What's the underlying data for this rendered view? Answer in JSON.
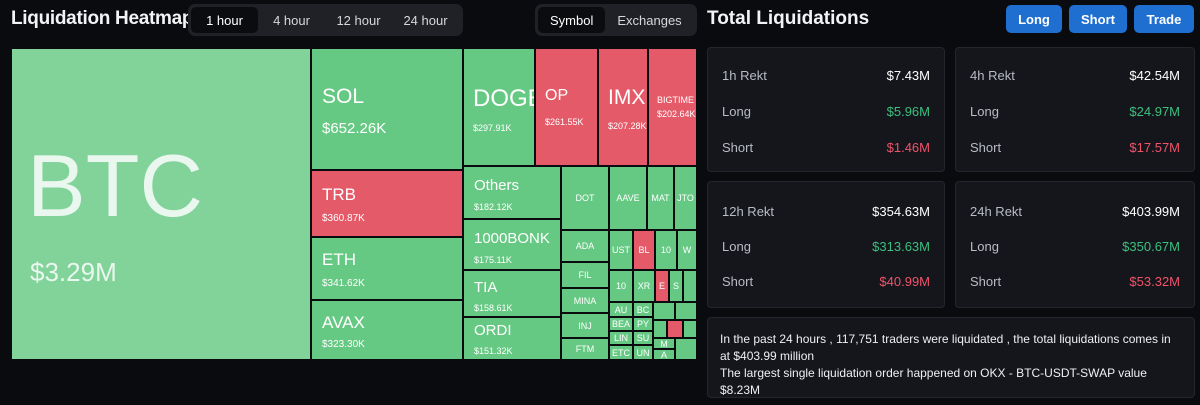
{
  "header": {
    "title": "Liquidation Heatmap",
    "time_tabs": [
      "1 hour",
      "4 hour",
      "12 hour",
      "24 hour"
    ],
    "active_time_tab": "1 hour",
    "view_tabs": [
      "Symbol",
      "Exchanges"
    ],
    "active_view_tab": "Symbol"
  },
  "heatmap_tiles": [
    {
      "symbol": "BTC",
      "value": "$3.29M",
      "color": "light-green"
    },
    {
      "symbol": "SOL",
      "value": "$652.26K",
      "color": "green"
    },
    {
      "symbol": "TRB",
      "value": "$360.87K",
      "color": "red"
    },
    {
      "symbol": "ETH",
      "value": "$341.62K",
      "color": "green"
    },
    {
      "symbol": "AVAX",
      "value": "$323.30K",
      "color": "green"
    },
    {
      "symbol": "DOGE",
      "value": "$297.91K",
      "color": "green"
    },
    {
      "symbol": "OP",
      "value": "$261.55K",
      "color": "red"
    },
    {
      "symbol": "IMX",
      "value": "$207.28K",
      "color": "red"
    },
    {
      "symbol": "BIGTIME",
      "value": "$202.64K",
      "color": "red"
    },
    {
      "symbol": "Others",
      "value": "$182.12K",
      "color": "green"
    },
    {
      "symbol": "1000BONK",
      "value": "$175.11K",
      "color": "green"
    },
    {
      "symbol": "TIA",
      "value": "$158.61K",
      "color": "green"
    },
    {
      "symbol": "ORDI",
      "value": "$151.32K",
      "color": "green"
    },
    {
      "symbol": "DOT",
      "value": "",
      "color": "green"
    },
    {
      "symbol": "AAVE",
      "value": "",
      "color": "green"
    },
    {
      "symbol": "MAT",
      "value": "",
      "color": "green"
    },
    {
      "symbol": "JTO",
      "value": "",
      "color": "green"
    },
    {
      "symbol": "ADA",
      "value": "",
      "color": "green"
    },
    {
      "symbol": "UST",
      "value": "",
      "color": "green"
    },
    {
      "symbol": "BL",
      "value": "",
      "color": "red"
    },
    {
      "symbol": "10",
      "value": "",
      "color": "green"
    },
    {
      "symbol": "W",
      "value": "",
      "color": "green"
    },
    {
      "symbol": "FIL",
      "value": "",
      "color": "green"
    },
    {
      "symbol": "10",
      "value": "",
      "color": "green"
    },
    {
      "symbol": "XR",
      "value": "",
      "color": "green"
    },
    {
      "symbol": "E",
      "value": "",
      "color": "red"
    },
    {
      "symbol": "S",
      "value": "",
      "color": "green"
    },
    {
      "symbol": "MINA",
      "value": "",
      "color": "green"
    },
    {
      "symbol": "INJ",
      "value": "",
      "color": "green"
    },
    {
      "symbol": "FTM",
      "value": "",
      "color": "green"
    },
    {
      "symbol": "AU",
      "value": "",
      "color": "green"
    },
    {
      "symbol": "BC",
      "value": "",
      "color": "green"
    },
    {
      "symbol": "BEA",
      "value": "",
      "color": "green"
    },
    {
      "symbol": "PY",
      "value": "",
      "color": "green"
    },
    {
      "symbol": "LIN",
      "value": "",
      "color": "green"
    },
    {
      "symbol": "SU",
      "value": "",
      "color": "green"
    },
    {
      "symbol": "ETC",
      "value": "",
      "color": "green"
    },
    {
      "symbol": "UN",
      "value": "",
      "color": "green"
    },
    {
      "symbol": "M",
      "value": "",
      "color": "green"
    },
    {
      "symbol": "A",
      "value": "",
      "color": "green"
    }
  ],
  "total_liquidations": {
    "title": "Total Liquidations",
    "buttons": [
      "Long",
      "Short",
      "Trade"
    ],
    "cards": [
      {
        "label": "1h Rekt",
        "total": "$7.43M",
        "long_label": "Long",
        "long": "$5.96M",
        "short_label": "Short",
        "short": "$1.46M"
      },
      {
        "label": "4h Rekt",
        "total": "$42.54M",
        "long_label": "Long",
        "long": "$24.97M",
        "short_label": "Short",
        "short": "$17.57M"
      },
      {
        "label": "12h Rekt",
        "total": "$354.63M",
        "long_label": "Long",
        "long": "$313.63M",
        "short_label": "Short",
        "short": "$40.99M"
      },
      {
        "label": "24h Rekt",
        "total": "$403.99M",
        "long_label": "Long",
        "long": "$350.67M",
        "short_label": "Short",
        "short": "$53.32M"
      }
    ],
    "summary_line1": "In the past 24 hours , 117,751 traders were liquidated , the total liquidations comes in at $403.99 million",
    "summary_line2": "The largest single liquidation order happened on OKX - BTC-USDT-SWAP value $8.23M"
  },
  "colors": {
    "background": "#0a0b0f",
    "tile_green": "#66c983",
    "tile_light_green": "#81d39a",
    "tile_red": "#e45a68",
    "positive_text": "#3dbf7e",
    "negative_text": "#f0536a",
    "button_blue": "#1f6fd1"
  }
}
